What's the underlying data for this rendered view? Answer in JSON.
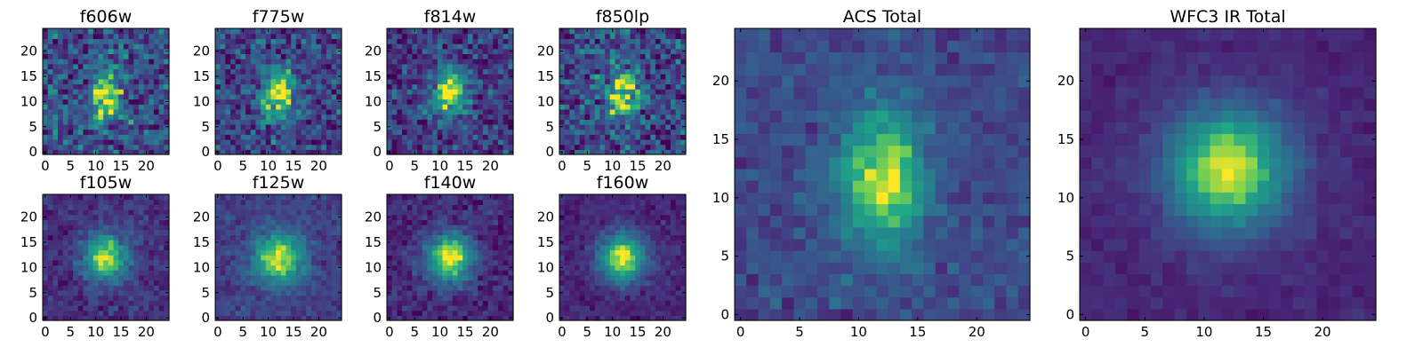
{
  "colormap": "viridis",
  "chart_data": [
    {
      "type": "heatmap",
      "title": "f606w",
      "xlim": [
        0,
        24
      ],
      "ylim": [
        0,
        24
      ],
      "xticks": [
        0,
        5,
        10,
        15,
        20
      ],
      "yticks": [
        0,
        5,
        10,
        15,
        20
      ],
      "source_center": [
        12,
        11.5
      ],
      "source_sigma": [
        2.0,
        3.6
      ],
      "noise": 0.34,
      "background": 0.3,
      "grid": false,
      "seed": 11
    },
    {
      "type": "heatmap",
      "title": "f775w",
      "xlim": [
        0,
        24
      ],
      "ylim": [
        0,
        24
      ],
      "xticks": [
        0,
        5,
        10,
        15,
        20
      ],
      "yticks": [
        0,
        5,
        10,
        15,
        20
      ],
      "source_center": [
        12,
        11.5
      ],
      "source_sigma": [
        2.2,
        3.8
      ],
      "noise": 0.3,
      "background": 0.26,
      "grid": false,
      "seed": 23
    },
    {
      "type": "heatmap",
      "title": "f814w",
      "xlim": [
        0,
        24
      ],
      "ylim": [
        0,
        24
      ],
      "xticks": [
        0,
        5,
        10,
        15,
        20
      ],
      "yticks": [
        0,
        5,
        10,
        15,
        20
      ],
      "source_center": [
        12,
        12
      ],
      "source_sigma": [
        2.4,
        3.4
      ],
      "noise": 0.28,
      "background": 0.22,
      "grid": false,
      "seed": 37
    },
    {
      "type": "heatmap",
      "title": "f850lp",
      "xlim": [
        0,
        24
      ],
      "ylim": [
        0,
        24
      ],
      "xticks": [
        0,
        5,
        10,
        15,
        20
      ],
      "yticks": [
        0,
        5,
        10,
        15,
        20
      ],
      "source_center": [
        12,
        11.5
      ],
      "source_sigma": [
        2.3,
        3.2
      ],
      "noise": 0.34,
      "background": 0.28,
      "grid": false,
      "seed": 41
    },
    {
      "type": "heatmap",
      "title": "f105w",
      "xlim": [
        0,
        24
      ],
      "ylim": [
        0,
        24
      ],
      "xticks": [
        0,
        5,
        10,
        15,
        20
      ],
      "yticks": [
        0,
        5,
        10,
        15,
        20
      ],
      "source_center": [
        12,
        12
      ],
      "source_sigma": [
        3.0,
        3.2
      ],
      "noise": 0.14,
      "background": 0.18,
      "grid": false,
      "seed": 53
    },
    {
      "type": "heatmap",
      "title": "f125w",
      "xlim": [
        0,
        24
      ],
      "ylim": [
        0,
        24
      ],
      "xticks": [
        0,
        5,
        10,
        15,
        20
      ],
      "yticks": [
        0,
        5,
        10,
        15,
        20
      ],
      "source_center": [
        12,
        12
      ],
      "source_sigma": [
        3.5,
        3.6
      ],
      "noise": 0.12,
      "background": 0.24,
      "grid": false,
      "seed": 67
    },
    {
      "type": "heatmap",
      "title": "f140w",
      "xlim": [
        0,
        24
      ],
      "ylim": [
        0,
        24
      ],
      "xticks": [
        0,
        5,
        10,
        15,
        20
      ],
      "yticks": [
        0,
        5,
        10,
        15,
        20
      ],
      "source_center": [
        12,
        12
      ],
      "source_sigma": [
        3.2,
        3.6
      ],
      "noise": 0.14,
      "background": 0.14,
      "grid": false,
      "seed": 71
    },
    {
      "type": "heatmap",
      "title": "f160w",
      "xlim": [
        0,
        24
      ],
      "ylim": [
        0,
        24
      ],
      "xticks": [
        0,
        5,
        10,
        15,
        20
      ],
      "yticks": [
        0,
        5,
        10,
        15,
        20
      ],
      "source_center": [
        12,
        12
      ],
      "source_sigma": [
        3.2,
        3.4
      ],
      "noise": 0.1,
      "background": 0.14,
      "grid": false,
      "seed": 83
    },
    {
      "type": "heatmap",
      "title": "ACS Total",
      "xlim": [
        0,
        24
      ],
      "ylim": [
        0,
        24
      ],
      "xticks": [
        0,
        5,
        10,
        15,
        20
      ],
      "yticks": [
        0,
        5,
        10,
        15,
        20
      ],
      "source_center": [
        12,
        11.5
      ],
      "source_sigma": [
        2.5,
        4.0
      ],
      "noise": 0.13,
      "background": 0.28,
      "grid": false,
      "seed": 97
    },
    {
      "type": "heatmap",
      "title": "WFC3 IR Total",
      "xlim": [
        0,
        24
      ],
      "ylim": [
        0,
        24
      ],
      "xticks": [
        0,
        5,
        10,
        15,
        20
      ],
      "yticks": [
        0,
        5,
        10,
        15,
        20
      ],
      "source_center": [
        12,
        12.5
      ],
      "source_sigma": [
        3.6,
        3.7
      ],
      "noise": 0.06,
      "background": 0.14,
      "grid": false,
      "seed": 101
    }
  ]
}
